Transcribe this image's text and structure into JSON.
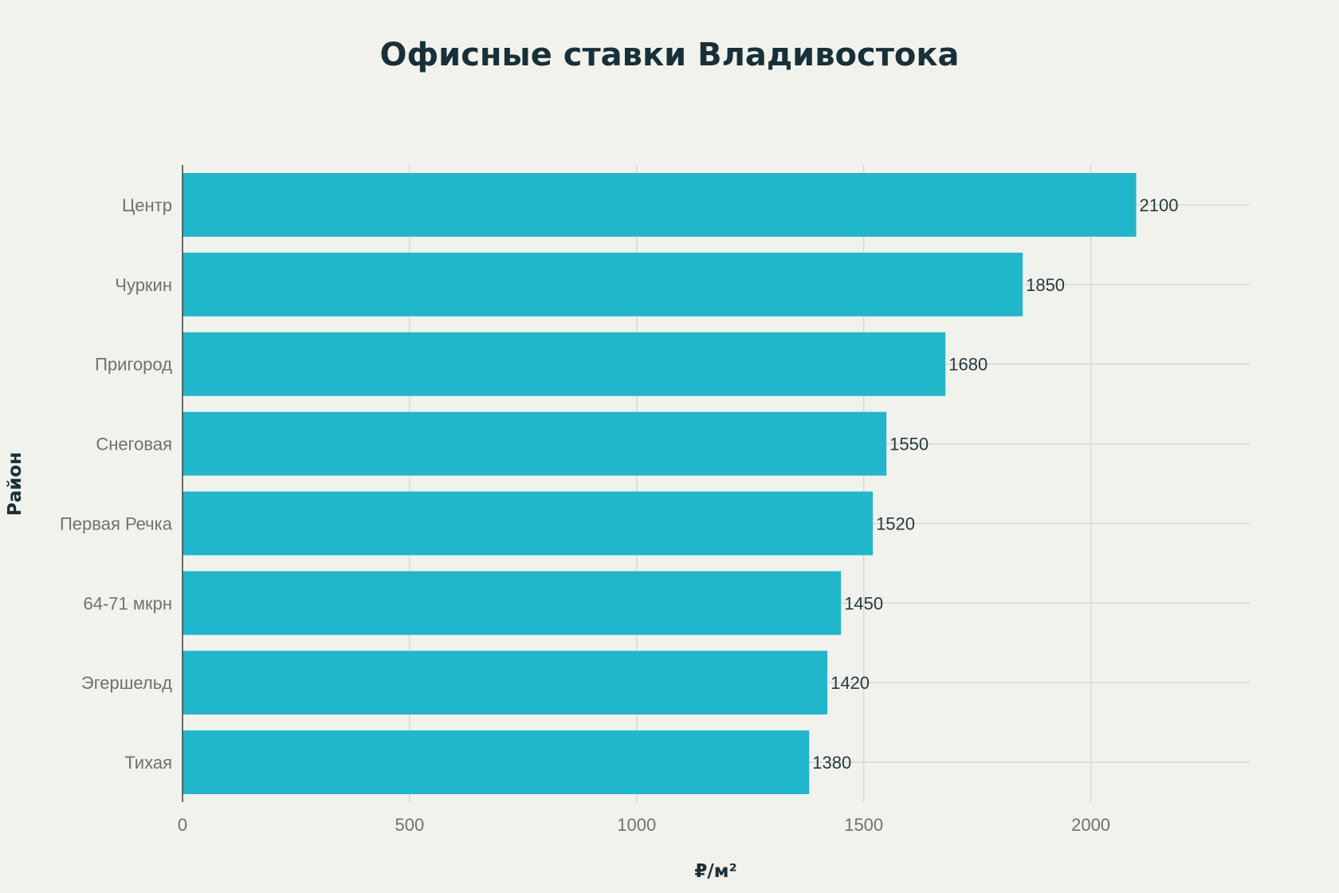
{
  "chart_data": {
    "type": "bar",
    "orientation": "horizontal",
    "title": "Офисные ставки Владивостока",
    "xlabel": "₽/м²",
    "ylabel": "Район",
    "categories": [
      "Центр",
      "Чуркин",
      "Пригород",
      "Снеговая",
      "Первая Речка",
      "64-71 мкрн",
      "Эгершельд",
      "Тихая"
    ],
    "values": [
      2100,
      1850,
      1680,
      1550,
      1520,
      1450,
      1420,
      1380
    ],
    "data_labels": [
      "2100",
      "1850",
      "1680",
      "1550",
      "1520",
      "1450",
      "1420",
      "1380"
    ],
    "xlim": [
      0,
      2350
    ],
    "xticks": [
      0,
      500,
      1000,
      1500,
      2000
    ],
    "xtick_labels": [
      "0",
      "500",
      "1000",
      "1500",
      "2000"
    ],
    "grid": true,
    "bar_color": "#20b7cc",
    "legend": "none"
  }
}
